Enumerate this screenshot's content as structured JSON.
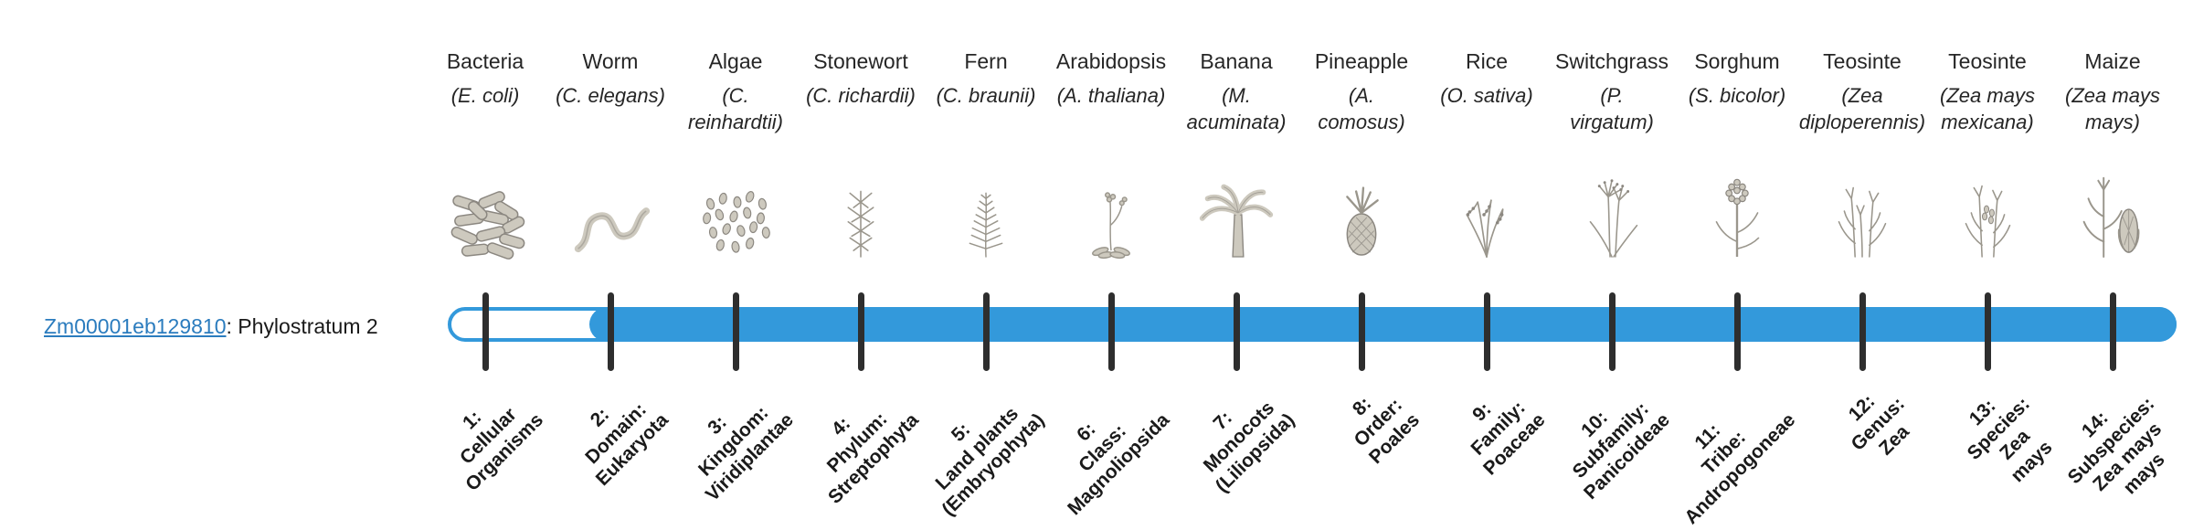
{
  "gene": {
    "id": "Zm00001eb129810",
    "suffix": ": Phylostratum 2"
  },
  "timeline": {
    "bar_color": "#3399db",
    "hollow_color": "#ffffff",
    "tick_color": "#2e2e2e",
    "filled_from_stratum": 2,
    "strata_count": 14
  },
  "organisms": [
    {
      "name": "Bacteria",
      "scientific": "(E. coli)",
      "icon": "bacteria-icon",
      "stratum_label": "1:\nCellular\nOrganisms"
    },
    {
      "name": "Worm",
      "scientific": "(C. elegans)",
      "icon": "worm-icon",
      "stratum_label": "2:\nDomain:\nEukaryota"
    },
    {
      "name": "Algae",
      "scientific": "(C.\nreinhardtii)",
      "icon": "algae-icon",
      "stratum_label": "3:\nKingdom:\nViridiplantae"
    },
    {
      "name": "Stonewort",
      "scientific": "(C. richardii)",
      "icon": "stonewort-icon",
      "stratum_label": "4:\nPhylum:\nStreptophyta"
    },
    {
      "name": "Fern",
      "scientific": "(C. braunii)",
      "icon": "fern-icon",
      "stratum_label": "5:\nLand plants\n(Embryophyta)"
    },
    {
      "name": "Arabidopsis",
      "scientific": "(A. thaliana)",
      "icon": "arabidopsis-icon",
      "stratum_label": "6:\nClass:\nMagnoliopsida"
    },
    {
      "name": "Banana",
      "scientific": "(M.\nacuminata)",
      "icon": "banana-icon",
      "stratum_label": "7:\nMonocots\n(Liliopsida)"
    },
    {
      "name": "Pineapple",
      "scientific": "(A.\ncomosus)",
      "icon": "pineapple-icon",
      "stratum_label": "8:\nOrder:\nPoales"
    },
    {
      "name": "Rice",
      "scientific": "(O. sativa)",
      "icon": "rice-icon",
      "stratum_label": "9:\nFamily:\nPoaceae"
    },
    {
      "name": "Switchgrass",
      "scientific": "(P.\nvirgatum)",
      "icon": "switchgrass-icon",
      "stratum_label": "10:\nSubfamily:\nPanicoideae"
    },
    {
      "name": "Sorghum",
      "scientific": "(S. bicolor)",
      "icon": "sorghum-icon",
      "stratum_label": "11:\nTribe:\nAndropogoneae"
    },
    {
      "name": "Teosinte",
      "scientific": "(Zea\ndiploperennis)",
      "icon": "teosinte-icon",
      "stratum_label": "12:\nGenus:\nZea"
    },
    {
      "name": "Teosinte",
      "scientific": "(Zea mays\nmexicana)",
      "icon": "teosinte-icon-2",
      "stratum_label": "13:\nSpecies:\nZea\nmays"
    },
    {
      "name": "Maize",
      "scientific": "(Zea mays\nmays)",
      "icon": "maize-icon",
      "stratum_label": "14:\nSubspecies:\nZea mays\nmays"
    }
  ]
}
